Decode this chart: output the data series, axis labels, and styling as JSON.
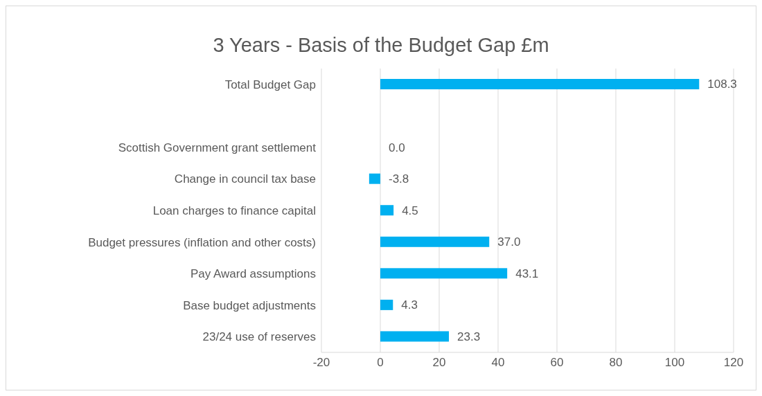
{
  "chart_data": {
    "type": "bar",
    "orientation": "horizontal",
    "title": "3 Years - Basis of the Budget Gap £m",
    "categories": [
      "Total Budget Gap",
      null,
      "Scottish Government grant settlement",
      "Change in council tax base",
      "Loan charges to finance capital",
      "Budget pressures (inflation and other costs)",
      "Pay Award assumptions",
      "Base budget adjustments",
      "23/24 use of reserves"
    ],
    "values": [
      108.3,
      null,
      0.0,
      -3.8,
      4.5,
      37.0,
      43.1,
      4.3,
      23.3
    ],
    "value_labels": [
      "108.3",
      null,
      "0.0",
      "-3.8",
      "4.5",
      "37.0",
      "43.1",
      "4.3",
      "23.3"
    ],
    "color": "#00b0f0",
    "xlim": [
      -20,
      120
    ],
    "xticks": [
      -20,
      0,
      20,
      40,
      60,
      80,
      100,
      120
    ],
    "grid": "x",
    "legend": false
  }
}
